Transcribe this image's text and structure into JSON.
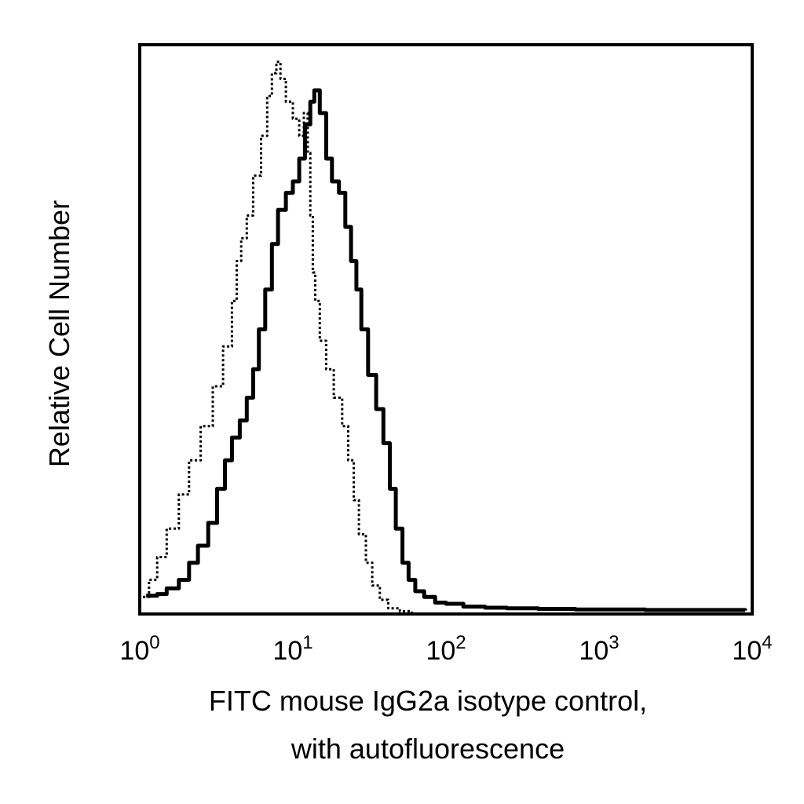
{
  "chart_data": {
    "type": "line",
    "title": "",
    "xlabel_lines": [
      "FITC mouse IgG2a isotype control,",
      "with autofluorescence"
    ],
    "ylabel": "Relative Cell Number",
    "xscale": "log",
    "xlim": [
      1,
      10000
    ],
    "ylim": [
      0,
      100
    ],
    "grid": false,
    "legend": "none",
    "x_ticks": [
      {
        "value": 1,
        "base": "10",
        "exp": "0"
      },
      {
        "value": 10,
        "base": "10",
        "exp": "1"
      },
      {
        "value": 100,
        "base": "10",
        "exp": "2"
      },
      {
        "value": 1000,
        "base": "10",
        "exp": "3"
      },
      {
        "value": 10000,
        "base": "10",
        "exp": "4"
      }
    ],
    "series": [
      {
        "style": "dotted",
        "points": [
          [
            1.05,
            3
          ],
          [
            1.15,
            6
          ],
          [
            1.3,
            10
          ],
          [
            1.5,
            15
          ],
          [
            1.8,
            21
          ],
          [
            2.1,
            27
          ],
          [
            2.5,
            33
          ],
          [
            3.0,
            40
          ],
          [
            3.5,
            47
          ],
          [
            4.0,
            55
          ],
          [
            4.3,
            62
          ],
          [
            4.6,
            66
          ],
          [
            5.0,
            70
          ],
          [
            5.5,
            77
          ],
          [
            6.2,
            84
          ],
          [
            6.8,
            91
          ],
          [
            7.3,
            95
          ],
          [
            7.8,
            97
          ],
          [
            8.3,
            94
          ],
          [
            9.0,
            90
          ],
          [
            10.0,
            87
          ],
          [
            11.0,
            84
          ],
          [
            11.8,
            88
          ],
          [
            12.5,
            81
          ],
          [
            13.0,
            70
          ],
          [
            13.5,
            60
          ],
          [
            14.0,
            55
          ],
          [
            15.0,
            48
          ],
          [
            16.5,
            43
          ],
          [
            18.5,
            38
          ],
          [
            21.0,
            33
          ],
          [
            23.0,
            27
          ],
          [
            25.0,
            20
          ],
          [
            27.0,
            14
          ],
          [
            30.0,
            9
          ],
          [
            33.0,
            5
          ],
          [
            37.0,
            2.5
          ],
          [
            42.0,
            1
          ],
          [
            50.0,
            0.5
          ],
          [
            60.0,
            0.3
          ]
        ]
      },
      {
        "style": "solid",
        "points": [
          [
            1.1,
            3.2
          ],
          [
            1.3,
            3.5
          ],
          [
            1.5,
            4.5
          ],
          [
            1.8,
            6
          ],
          [
            2.1,
            9
          ],
          [
            2.4,
            12
          ],
          [
            2.8,
            16
          ],
          [
            3.2,
            22
          ],
          [
            3.6,
            27
          ],
          [
            4.0,
            31
          ],
          [
            4.5,
            34
          ],
          [
            5.0,
            38
          ],
          [
            5.5,
            43
          ],
          [
            6.0,
            50
          ],
          [
            6.6,
            57
          ],
          [
            7.3,
            65
          ],
          [
            8.0,
            71
          ],
          [
            9.0,
            74
          ],
          [
            10.0,
            76
          ],
          [
            11.0,
            80
          ],
          [
            12.0,
            86
          ],
          [
            13.0,
            90
          ],
          [
            13.8,
            92
          ],
          [
            15.0,
            88
          ],
          [
            16.5,
            80
          ],
          [
            18.0,
            76
          ],
          [
            20.0,
            74
          ],
          [
            22.0,
            68
          ],
          [
            24.0,
            62
          ],
          [
            26.0,
            57
          ],
          [
            28.0,
            50
          ],
          [
            31.0,
            42
          ],
          [
            35.0,
            36
          ],
          [
            39.0,
            30
          ],
          [
            43.0,
            22
          ],
          [
            47.0,
            15
          ],
          [
            52.0,
            9
          ],
          [
            57.0,
            6
          ],
          [
            63.0,
            4
          ],
          [
            72.0,
            3
          ],
          [
            85.0,
            2
          ],
          [
            100.0,
            1.8
          ],
          [
            130.0,
            1.3
          ],
          [
            180.0,
            1.1
          ],
          [
            250.0,
            1.0
          ],
          [
            400.0,
            0.9
          ],
          [
            700.0,
            0.8
          ],
          [
            1000.0,
            0.8
          ],
          [
            2000.0,
            0.7
          ],
          [
            4000.0,
            0.7
          ],
          [
            9000.0,
            0.6
          ]
        ]
      }
    ]
  }
}
